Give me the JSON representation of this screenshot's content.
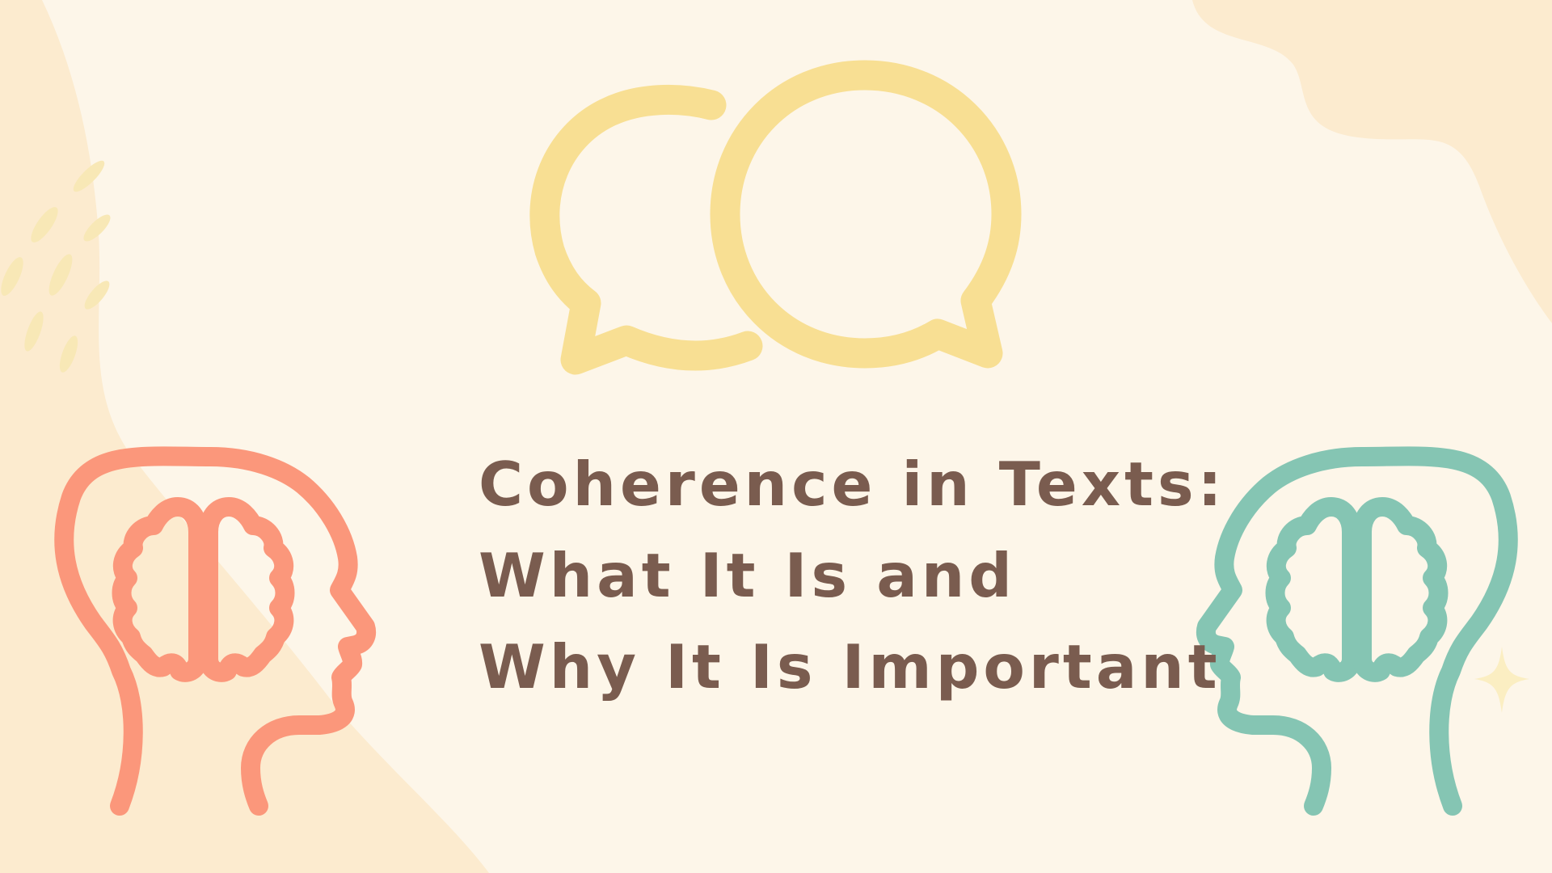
{
  "title": {
    "line1": "Coherence in Texts:",
    "line2": "What It Is and",
    "line3": "Why It Is Important"
  },
  "colors": {
    "background": "#fdf6e9",
    "blob": "#fcebcf",
    "bubbles": "#f8df93",
    "left_head": "#fb977b",
    "right_head": "#85c5b3",
    "title_text": "#7a5c4f",
    "sparkle": "#fbeec2"
  },
  "icons": {
    "speech_bubbles": "speech-bubbles-icon",
    "left_head": "brain-head-icon",
    "right_head": "brain-head-icon",
    "sparkle": "sparkle-icon",
    "leaf_marks": "leaf-marks"
  }
}
